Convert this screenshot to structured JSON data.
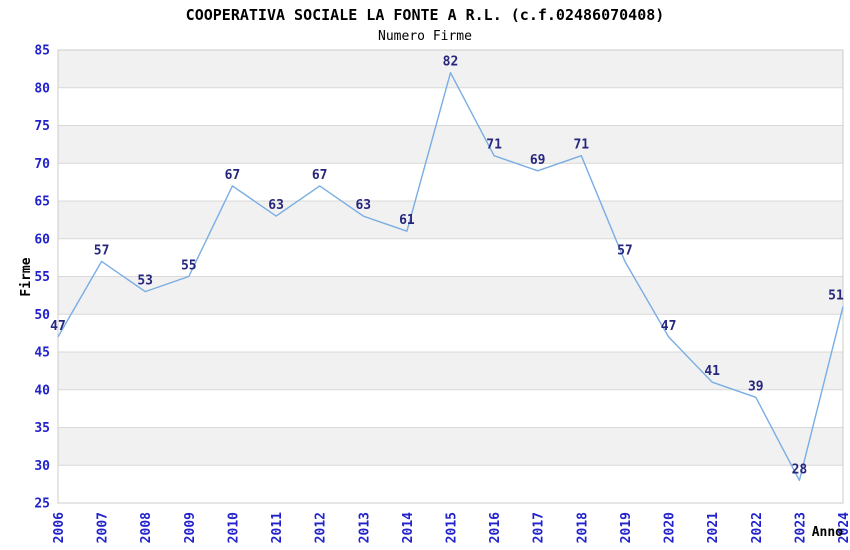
{
  "chart_data": {
    "type": "line",
    "title": "COOPERATIVA SOCIALE LA FONTE A R.L. (c.f.02486070408)",
    "subtitle": "Numero Firme",
    "xlabel": "Anno",
    "ylabel": "Firme",
    "categories": [
      "2006",
      "2007",
      "2008",
      "2009",
      "2010",
      "2011",
      "2012",
      "2013",
      "2014",
      "2015",
      "2016",
      "2017",
      "2018",
      "2019",
      "2020",
      "2021",
      "2022",
      "2023",
      "2024"
    ],
    "series": [
      {
        "name": "Numero Firme",
        "values": [
          47,
          57,
          53,
          55,
          67,
          63,
          67,
          63,
          61,
          82,
          71,
          69,
          71,
          57,
          47,
          41,
          39,
          28,
          51
        ]
      }
    ],
    "ylim": [
      25,
      85
    ],
    "ytick_step": 5,
    "grid": "horizontal-bands-alternating",
    "legend": "none",
    "value_labels": "shown-above-points",
    "x_tick_rotation": "vertical",
    "colors": {
      "line": "#79ade4",
      "tick_label": "#2222cc",
      "value_label": "#26267d",
      "band": "#f1f1f1",
      "gridline": "#d9d9d9",
      "plot_border": "#cccccc",
      "title": "#1a1a1a",
      "subtitle": "#444444",
      "axis_title": "#1a1a1a",
      "background": "#ffffff"
    }
  }
}
